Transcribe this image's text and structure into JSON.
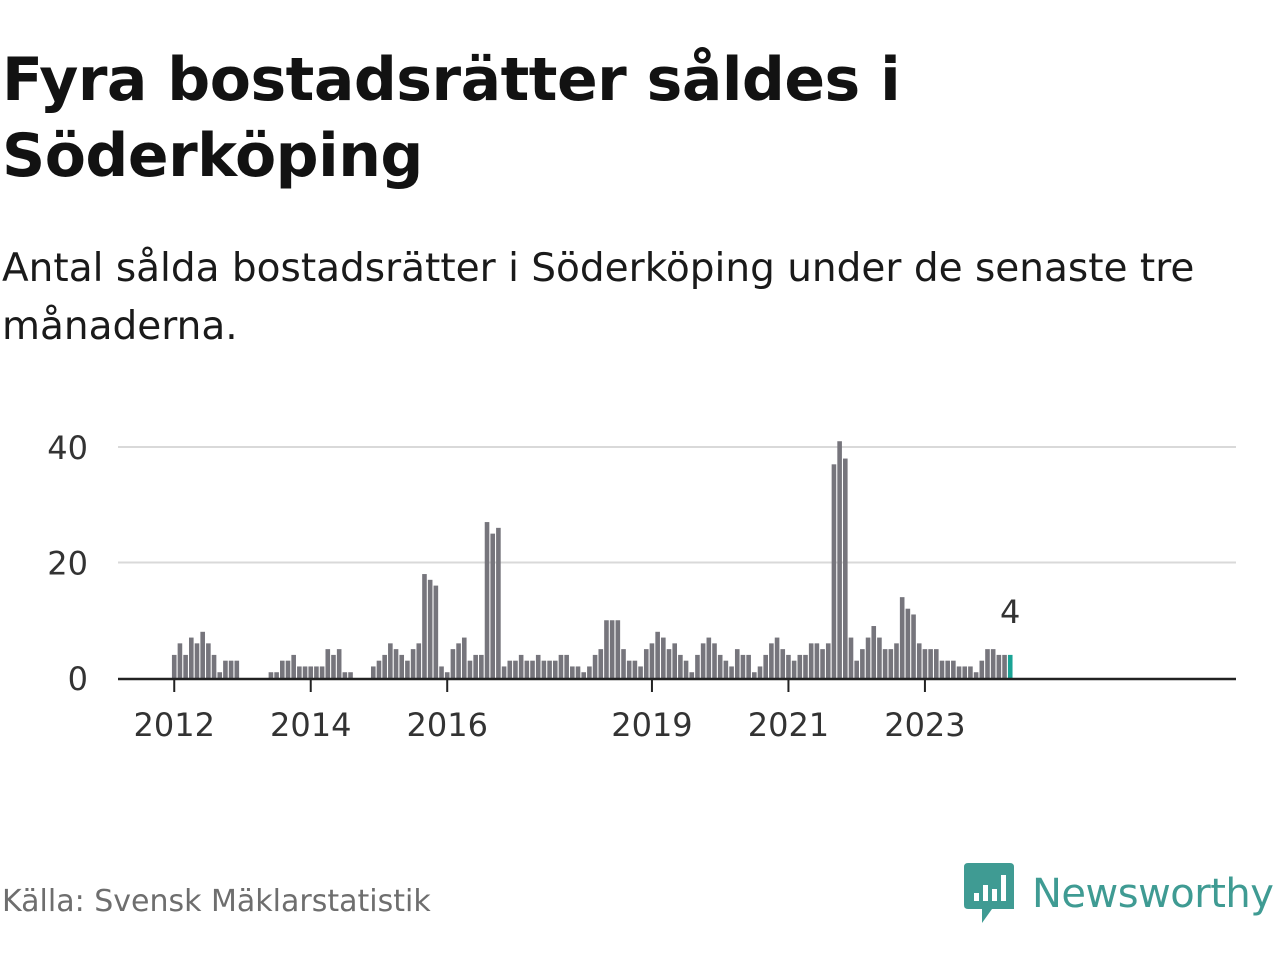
{
  "title": "Fyra bostadsrätter såldes i Söderköping",
  "subtitle": "Antal sålda bostadsrätter i Söderköping under de senaste tre månaderna.",
  "source": "Källa: Svensk Mäklarstatistik",
  "brand": {
    "name": "Newsworthy",
    "icon": "newsworthy-logo-icon",
    "color": "#3f9b93"
  },
  "colors": {
    "bar": "#76757c",
    "highlight": "#1aa395",
    "grid": "#d9d9d9",
    "axis": "#222222"
  },
  "chart_data": {
    "type": "bar",
    "start": "2011-01",
    "values": [
      0,
      0,
      0,
      0,
      0,
      0,
      0,
      0,
      0,
      0,
      0,
      0,
      4,
      6,
      4,
      7,
      6,
      8,
      6,
      4,
      1,
      3,
      3,
      3,
      0,
      0,
      0,
      0,
      0,
      1,
      1,
      3,
      3,
      4,
      2,
      2,
      2,
      2,
      2,
      5,
      4,
      5,
      1,
      1,
      0,
      0,
      0,
      2,
      3,
      4,
      6,
      5,
      4,
      3,
      5,
      6,
      18,
      17,
      16,
      2,
      1,
      5,
      6,
      7,
      3,
      4,
      4,
      27,
      25,
      26,
      2,
      3,
      3,
      4,
      3,
      3,
      4,
      3,
      3,
      3,
      4,
      4,
      2,
      2,
      1,
      2,
      4,
      5,
      10,
      10,
      10,
      5,
      3,
      3,
      2,
      5,
      6,
      8,
      7,
      5,
      6,
      4,
      3,
      1,
      4,
      6,
      7,
      6,
      4,
      3,
      2,
      5,
      4,
      4,
      1,
      2,
      4,
      6,
      7,
      5,
      4,
      3,
      4,
      4,
      6,
      6,
      5,
      6,
      37,
      41,
      38,
      7,
      3,
      5,
      7,
      9,
      7,
      5,
      5,
      6,
      14,
      12,
      11,
      6,
      5,
      5,
      5,
      3,
      3,
      3,
      2,
      2,
      2,
      1,
      3,
      5,
      5,
      4,
      4,
      4
    ],
    "highlight_last": true,
    "last_value_label": "4",
    "ylim": [
      0,
      40
    ],
    "y_ticks": [
      0,
      20,
      40
    ],
    "x_ticks": [
      {
        "label": "2012",
        "index": 12
      },
      {
        "label": "2014",
        "index": 36
      },
      {
        "label": "2016",
        "index": 60
      },
      {
        "label": "2019",
        "index": 96
      },
      {
        "label": "2021",
        "index": 120
      },
      {
        "label": "2023",
        "index": 144
      }
    ],
    "grid": true
  }
}
